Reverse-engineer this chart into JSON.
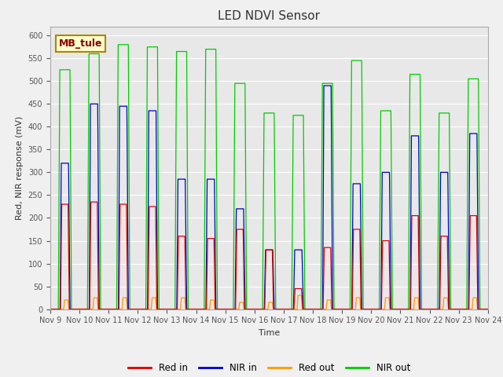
{
  "title": "LED NDVI Sensor",
  "xlabel": "Time",
  "ylabel": "Red, NIR response (mV)",
  "ylim": [
    0,
    620
  ],
  "yticks": [
    0,
    50,
    100,
    150,
    200,
    250,
    300,
    350,
    400,
    450,
    500,
    550,
    600
  ],
  "annotation": "MB_tule",
  "background_color": "#e8e8e8",
  "fig_background": "#f0f0f0",
  "line_colors": {
    "red_in": "#dd0000",
    "nir_in": "#0000cc",
    "red_out": "#ff9900",
    "nir_out": "#00cc00"
  },
  "legend_labels": [
    "Red in",
    "NIR in",
    "Red out",
    "NIR out"
  ],
  "x_tick_labels": [
    "Nov 9",
    "Nov 10",
    "Nov 11",
    "Nov 12",
    "Nov 13",
    "Nov 14",
    "Nov 15",
    "Nov 16",
    "Nov 17",
    "Nov 18",
    "Nov 19",
    "Nov 20",
    "Nov 21",
    "Nov 22",
    "Nov 23",
    "Nov 24"
  ],
  "title_fontsize": 11,
  "axis_fontsize": 8,
  "tick_fontsize": 7,
  "red_in_peaks": [
    230,
    235,
    230,
    225,
    160,
    155,
    175,
    130,
    45,
    135,
    175,
    150,
    205,
    160,
    205
  ],
  "nir_in_peaks": [
    320,
    450,
    445,
    435,
    285,
    285,
    220,
    130,
    130,
    490,
    275,
    300,
    380,
    300,
    385
  ],
  "red_out_peaks": [
    20,
    25,
    25,
    25,
    25,
    20,
    15,
    15,
    30,
    20,
    25,
    25,
    25,
    25,
    25
  ],
  "nir_out_peaks": [
    525,
    560,
    580,
    575,
    565,
    570,
    495,
    430,
    425,
    495,
    545,
    435,
    515,
    430,
    505
  ],
  "n_days": 15
}
